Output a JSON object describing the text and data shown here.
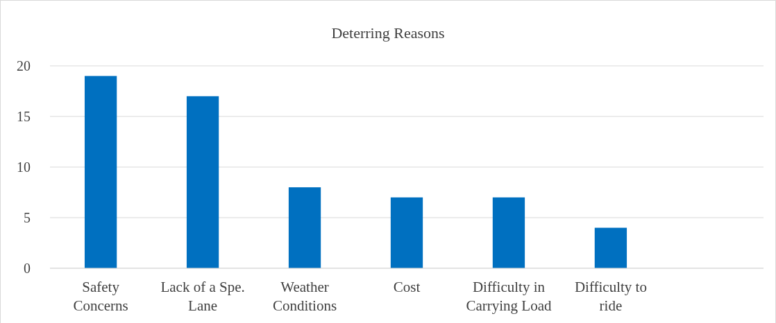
{
  "chart_data": {
    "type": "bar",
    "title": "Deterring Reasons",
    "categories": [
      "Safety Concerns",
      "Lack of a Spe. Lane",
      "Weather Conditions",
      "Cost",
      "Difficulty in Carrying Load",
      "Difficulty to ride",
      null
    ],
    "values": [
      19,
      17,
      8,
      7,
      7,
      4,
      null
    ],
    "color": "#0070c0",
    "ylim": [
      0,
      20
    ],
    "yticks": [
      0,
      5,
      10,
      15,
      20
    ],
    "grid": "y"
  }
}
